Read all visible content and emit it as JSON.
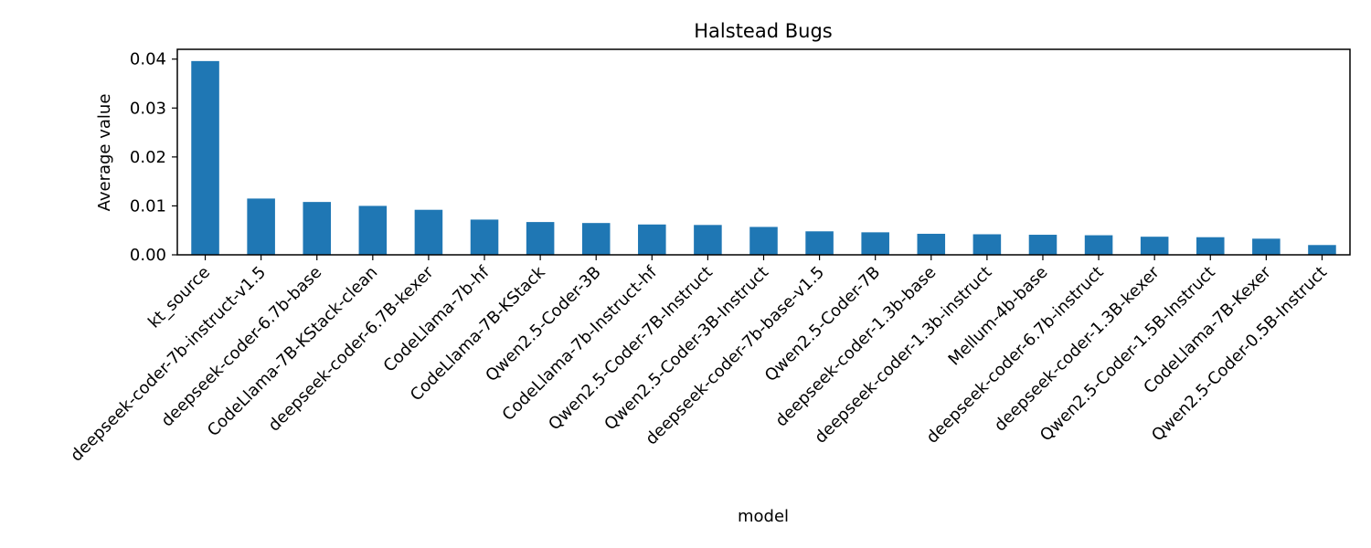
{
  "chart_data": {
    "type": "bar",
    "title": "Halstead Bugs",
    "xlabel": "model",
    "ylabel": "Average value",
    "ylim": [
      0,
      0.042
    ],
    "yticks": [
      "0.00",
      "0.01",
      "0.02",
      "0.03",
      "0.04"
    ],
    "yticks_values": [
      0,
      0.01,
      0.02,
      0.03,
      0.04
    ],
    "bar_color": "#1f77b4",
    "grid": false,
    "legend": "none",
    "categories": [
      "kt_source",
      "deepseek-coder-7b-instruct-v1.5",
      "deepseek-coder-6.7b-base",
      "CodeLlama-7B-KStack-clean",
      "deepseek-coder-6.7B-kexer",
      "CodeLlama-7b-hf",
      "CodeLlama-7B-KStack",
      "Qwen2.5-Coder-3B",
      "CodeLlama-7b-Instruct-hf",
      "Qwen2.5-Coder-7B-Instruct",
      "Qwen2.5-Coder-3B-Instruct",
      "deepseek-coder-7b-base-v1.5",
      "Qwen2.5-Coder-7B",
      "deepseek-coder-1.3b-base",
      "deepseek-coder-1.3b-instruct",
      "Mellum-4b-base",
      "deepseek-coder-6.7b-instruct",
      "deepseek-coder-1.3B-kexer",
      "Qwen2.5-Coder-1.5B-Instruct",
      "CodeLlama-7B-Kexer",
      "Qwen2.5-Coder-0.5B-Instruct"
    ],
    "values": [
      0.0396,
      0.0115,
      0.0108,
      0.01,
      0.0092,
      0.0072,
      0.0067,
      0.0065,
      0.0062,
      0.0061,
      0.0057,
      0.0048,
      0.0046,
      0.0043,
      0.0042,
      0.0041,
      0.004,
      0.0037,
      0.0036,
      0.0033,
      0.002
    ]
  }
}
